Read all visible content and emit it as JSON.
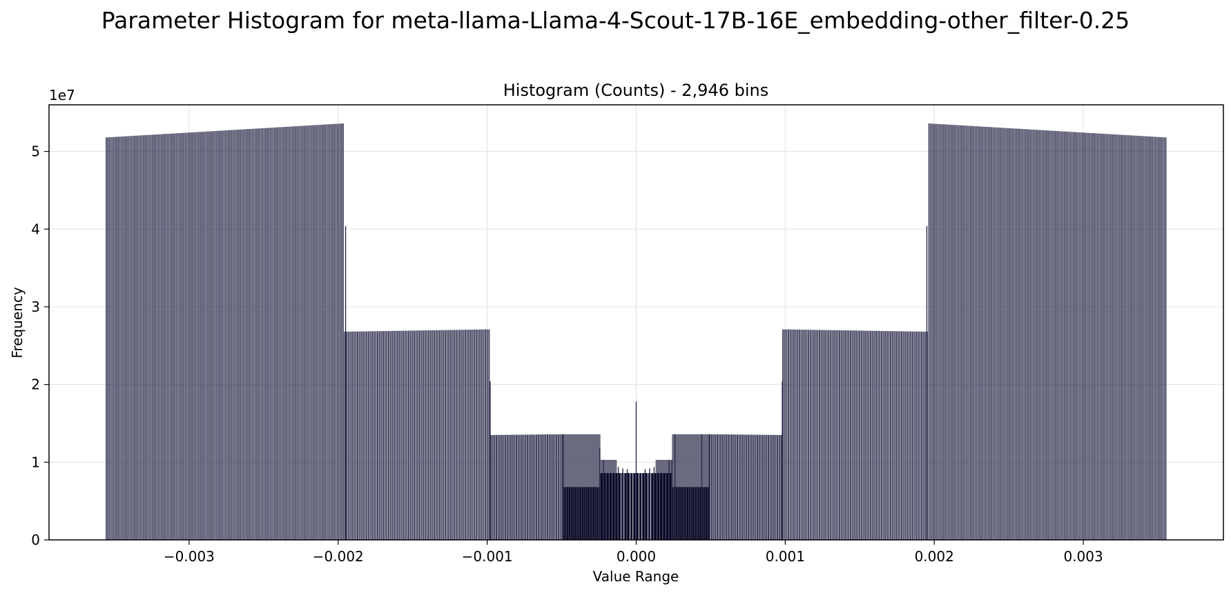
{
  "figure": {
    "suptitle": "Parameter Histogram for meta-llama-Llama-4-Scout-17B-16E_embedding-other_filter-0.25"
  },
  "chart_data": {
    "type": "bar",
    "title": "Histogram (Counts) - 2,946 bins",
    "xlabel": "Value Range",
    "ylabel": "Frequency",
    "y_offset_label": "1e7",
    "xlim": [
      -0.00394,
      0.00394
    ],
    "ylim": [
      0,
      56000000
    ],
    "xticks": [
      -0.003,
      -0.002,
      -0.001,
      0.0,
      0.001,
      0.002,
      0.003
    ],
    "xtick_labels": [
      "−0.003",
      "−0.002",
      "−0.001",
      "0.000",
      "0.001",
      "0.002",
      "0.003"
    ],
    "yticks": [
      0,
      10000000,
      20000000,
      30000000,
      40000000,
      50000000
    ],
    "ytick_labels": [
      "0",
      "1",
      "2",
      "3",
      "4",
      "5"
    ],
    "grid": true,
    "bar_color": "#2a2a4a",
    "inner_bar_color": "#0a0a28",
    "segments": [
      {
        "from": -0.00356,
        "to": -0.00196,
        "count": 160,
        "start": 51800000,
        "end": 53600000,
        "alpha": 0.85
      },
      {
        "from": -0.00196,
        "to": -0.00098,
        "count": 80,
        "start": 26800000,
        "end": 27100000,
        "alpha": 0.85
      },
      {
        "from": -0.00098,
        "to": -0.00049,
        "count": 40,
        "start": 13500000,
        "end": 13600000,
        "alpha": 0.9
      },
      {
        "from": -0.00049,
        "to": -0.00024,
        "count": 20,
        "start": 6800000,
        "end": 6800000,
        "alpha": 1.0
      },
      {
        "from": -0.00024,
        "to": 0.00024,
        "count": 24,
        "start": 8600000,
        "end": 8600000,
        "alpha": 1.0
      },
      {
        "from": 0.00024,
        "to": 0.00049,
        "count": 20,
        "start": 6800000,
        "end": 6800000,
        "alpha": 1.0
      },
      {
        "from": 0.00049,
        "to": 0.00098,
        "count": 40,
        "start": 13600000,
        "end": 13500000,
        "alpha": 0.9
      },
      {
        "from": 0.00098,
        "to": 0.00196,
        "count": 80,
        "start": 27100000,
        "end": 26800000,
        "alpha": 0.85
      },
      {
        "from": 0.00196,
        "to": 0.00356,
        "count": 160,
        "start": 53600000,
        "end": 51800000,
        "alpha": 0.85
      }
    ],
    "spikes": [
      {
        "x": -0.00195,
        "value": 40400000
      },
      {
        "x": 0.00195,
        "value": 40400000
      },
      {
        "x": -0.00098,
        "value": 20400000
      },
      {
        "x": 0.00098,
        "value": 20400000
      },
      {
        "x": -0.00049,
        "value": 13600000
      },
      {
        "x": 0.00049,
        "value": 13600000
      },
      {
        "x": -0.000245,
        "value": 11800000
      },
      {
        "x": -0.00022,
        "value": 10300000
      },
      {
        "x": -0.00012,
        "value": 9400000
      },
      {
        "x": -9e-05,
        "value": 9200000
      },
      {
        "x": -6e-05,
        "value": 9100000
      },
      {
        "x": 0.0,
        "value": 17800000
      },
      {
        "x": 6e-05,
        "value": 9100000
      },
      {
        "x": 9e-05,
        "value": 9200000
      },
      {
        "x": 0.00012,
        "value": 9400000
      },
      {
        "x": 0.00022,
        "value": 10300000
      },
      {
        "x": 0.00024,
        "value": 10300000
      },
      {
        "x": 0.00026,
        "value": 13600000
      },
      {
        "x": 0.00044,
        "value": 13600000
      }
    ],
    "mid_plateaus": [
      {
        "from": -0.00049,
        "to": -0.00024,
        "value": 13600000
      },
      {
        "from": -0.00024,
        "to": -0.00013,
        "value": 10300000
      },
      {
        "from": 0.00013,
        "to": 0.00024,
        "value": 10300000
      },
      {
        "from": 0.00024,
        "to": 0.00049,
        "value": 13600000
      }
    ]
  }
}
